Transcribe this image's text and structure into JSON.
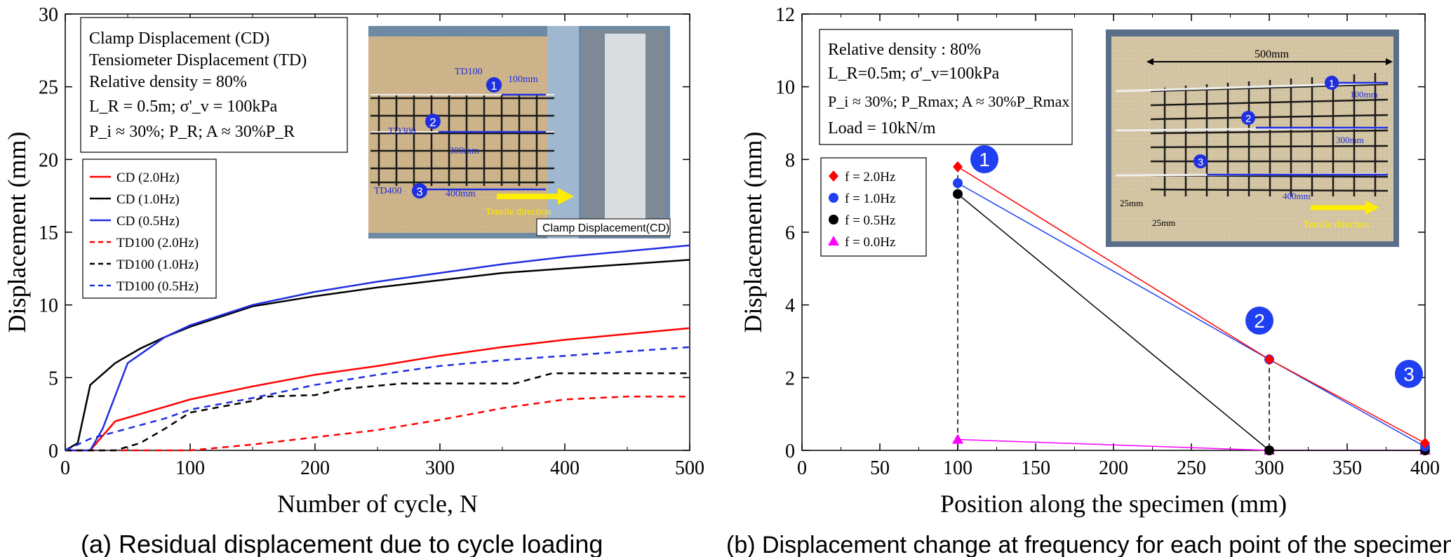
{
  "chart_data": [
    {
      "type": "line",
      "panel": "a",
      "caption": "(a) Residual displacement due to cycle loading",
      "xlabel": "Number of cycle, N",
      "ylabel": "Displacement (mm)",
      "xlim": [
        0,
        500
      ],
      "ylim": [
        0,
        30
      ],
      "xticks": [
        0,
        100,
        200,
        300,
        400,
        500
      ],
      "yticks": [
        0,
        5,
        10,
        15,
        20,
        25,
        30
      ],
      "grid": false,
      "legend_position": "left",
      "info_box": [
        "Clamp Displacement (CD)",
        "Tensiometer Displacement (TD)",
        "Relative density = 80%",
        "L_R = 0.5m; σ'_v = 100kPa",
        "P_i ≈ 30%; P_R; A ≈ 30%P_R"
      ],
      "series": [
        {
          "name": "CD (2.0Hz)",
          "color": "#ff0000",
          "style": "solid",
          "x": [
            0,
            20,
            25,
            40,
            60,
            80,
            100,
            150,
            200,
            250,
            300,
            350,
            400,
            450,
            500
          ],
          "y": [
            0,
            0,
            0.5,
            2.0,
            2.5,
            3.0,
            3.5,
            4.4,
            5.2,
            5.8,
            6.5,
            7.1,
            7.6,
            8.0,
            8.4
          ]
        },
        {
          "name": "CD (1.0Hz)",
          "color": "#000000",
          "style": "solid",
          "x": [
            0,
            10,
            20,
            40,
            60,
            80,
            100,
            150,
            200,
            250,
            300,
            350,
            400,
            450,
            500
          ],
          "y": [
            0,
            0.5,
            4.5,
            6.0,
            7.0,
            7.8,
            8.5,
            9.9,
            10.6,
            11.2,
            11.7,
            12.2,
            12.5,
            12.8,
            13.1
          ]
        },
        {
          "name": "CD (0.5Hz)",
          "color": "#1f2fe0",
          "style": "solid",
          "x": [
            0,
            20,
            30,
            50,
            60,
            80,
            100,
            150,
            200,
            250,
            300,
            350,
            400,
            450,
            500
          ],
          "y": [
            0,
            0,
            1.5,
            6.0,
            6.6,
            7.8,
            8.6,
            10.0,
            10.9,
            11.6,
            12.2,
            12.8,
            13.3,
            13.7,
            14.1
          ]
        },
        {
          "name": "TD100 (2.0Hz)",
          "color": "#ff0000",
          "style": "dashed",
          "x": [
            0,
            100,
            150,
            200,
            250,
            300,
            350,
            400,
            450,
            500
          ],
          "y": [
            0,
            0,
            0.4,
            0.9,
            1.4,
            2.1,
            2.9,
            3.5,
            3.7,
            3.7
          ]
        },
        {
          "name": "TD100 (1.0Hz)",
          "color": "#000000",
          "style": "dashed",
          "x": [
            0,
            40,
            60,
            80,
            100,
            150,
            160,
            200,
            220,
            270,
            300,
            360,
            390,
            450,
            500
          ],
          "y": [
            0,
            0,
            0.5,
            1.5,
            2.6,
            3.4,
            3.7,
            3.8,
            4.2,
            4.6,
            4.6,
            4.6,
            5.3,
            5.3,
            5.3
          ]
        },
        {
          "name": "TD100 (0.5Hz)",
          "color": "#1f2fe0",
          "style": "dashed",
          "x": [
            0,
            20,
            50,
            80,
            100,
            150,
            200,
            250,
            300,
            350,
            400,
            450,
            500
          ],
          "y": [
            0,
            0.8,
            1.5,
            2.2,
            2.8,
            3.6,
            4.5,
            5.2,
            5.8,
            6.2,
            6.5,
            6.8,
            7.1
          ]
        }
      ],
      "photo": {
        "labels": [
          "TD100",
          "100mm",
          "TD300",
          "300mm",
          "TD400",
          "400mm",
          "Tensile direction",
          "Clamp Displacement(CD)"
        ],
        "markers": [
          "1",
          "2",
          "3"
        ]
      }
    },
    {
      "type": "line",
      "panel": "b",
      "caption": "(b) Displacement change at frequency for each point of the specimen",
      "xlabel": "Position along the specimen (mm)",
      "ylabel": "Displacement (mm)",
      "xlim": [
        0,
        400
      ],
      "ylim": [
        0,
        12
      ],
      "xticks": [
        0,
        50,
        100,
        150,
        200,
        250,
        300,
        350,
        400
      ],
      "yticks": [
        0,
        2,
        4,
        6,
        8,
        10,
        12
      ],
      "grid": false,
      "legend_position": "left",
      "info_box": [
        "Relative density : 80%",
        "L_R=0.5m; σ'_v=100kPa",
        "P_i ≈ 30%; P_Rmax; A ≈ 30%P_Rmax",
        "Load = 10kN/m"
      ],
      "series": [
        {
          "name": "f = 2.0Hz",
          "color": "#ff0000",
          "marker": "diamond",
          "x": [
            100,
            300,
            400
          ],
          "y": [
            7.8,
            2.5,
            0.2
          ]
        },
        {
          "name": "f = 1.0Hz",
          "color": "#1f3ff0",
          "marker": "circle",
          "x": [
            100,
            300,
            400
          ],
          "y": [
            7.35,
            2.5,
            0.1
          ]
        },
        {
          "name": "f = 0.5Hz",
          "color": "#000000",
          "marker": "circle",
          "x": [
            100,
            300,
            400
          ],
          "y": [
            7.05,
            0.0,
            0.0
          ]
        },
        {
          "name": "f = 0.0Hz",
          "color": "#ff00ff",
          "marker": "triangle",
          "x": [
            100,
            300,
            400
          ],
          "y": [
            0.3,
            0.0,
            0.0
          ]
        }
      ],
      "point_markers": [
        "1",
        "2",
        "3"
      ],
      "photo": {
        "labels": [
          "500mm",
          "100mm",
          "300mm",
          "400mm",
          "25mm",
          "25mm",
          "Tensile direction"
        ],
        "markers": [
          "1",
          "2",
          "3"
        ]
      }
    }
  ]
}
